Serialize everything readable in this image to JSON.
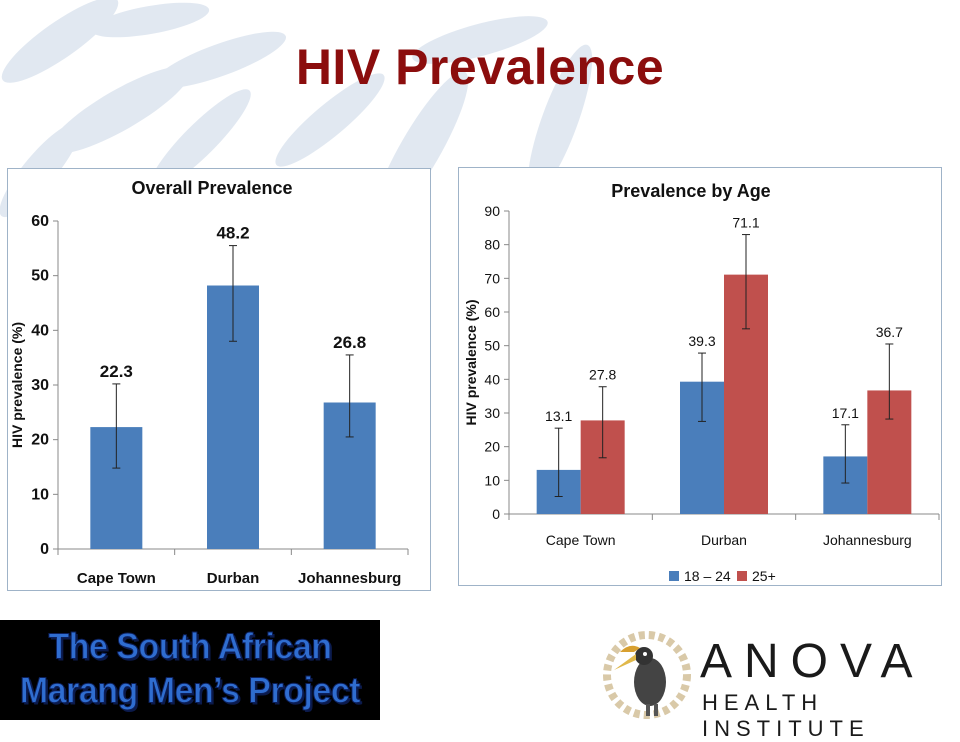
{
  "slide": {
    "title": "HIV Prevalence"
  },
  "colors": {
    "title": "#8b0d0d",
    "blue": "#4a7ebb",
    "red": "#c0504d",
    "axis": "#888888"
  },
  "chart_data": [
    {
      "type": "bar",
      "title": "Overall Prevalence",
      "ylabel": "HIV prevalence (%)",
      "xlabel": "",
      "categories": [
        "Cape Town",
        "Durban",
        "Johannesburg"
      ],
      "series": [
        {
          "values": [
            22.3,
            48.2,
            26.8
          ],
          "error_low": [
            14.8,
            38.0,
            20.5
          ],
          "error_high": [
            30.2,
            55.5,
            35.5
          ],
          "color": "#4a7ebb"
        }
      ],
      "data_labels": [
        "22.3",
        "48.2",
        "26.8"
      ],
      "ylim": [
        0,
        60
      ],
      "yticks": [
        0,
        10,
        20,
        30,
        40,
        50,
        60
      ],
      "grid": false,
      "legend": "none"
    },
    {
      "type": "bar",
      "title": "Prevalence by Age",
      "ylabel": "HIV prevalence (%)",
      "xlabel": "",
      "categories": [
        "Cape Town",
        "Durban",
        "Johannesburg"
      ],
      "series": [
        {
          "name": "18 – 24",
          "values": [
            13.1,
            39.3,
            17.1
          ],
          "error_low": [
            5.2,
            27.5,
            9.2
          ],
          "error_high": [
            25.5,
            47.8,
            26.5
          ],
          "color": "#4a7ebb"
        },
        {
          "name": "25+",
          "values": [
            27.8,
            71.1,
            36.7
          ],
          "error_low": [
            16.7,
            55.0,
            28.2
          ],
          "error_high": [
            37.8,
            83.0,
            50.5
          ],
          "color": "#c0504d"
        }
      ],
      "data_labels": [
        [
          "13.1",
          "39.3",
          "17.1"
        ],
        [
          "27.8",
          "71.1",
          "36.7"
        ]
      ],
      "ylim": [
        0,
        90
      ],
      "yticks": [
        0,
        10,
        20,
        30,
        40,
        50,
        60,
        70,
        80,
        90
      ],
      "grid": false,
      "legend": "bottom"
    }
  ],
  "logos": {
    "left_line1": "The South African",
    "left_line2": "Marang Men’s Project",
    "right_name": "ANOVA",
    "right_sub": "HEALTH INSTITUTE",
    "right_emblem_icon": "hornbill-bird-icon"
  }
}
